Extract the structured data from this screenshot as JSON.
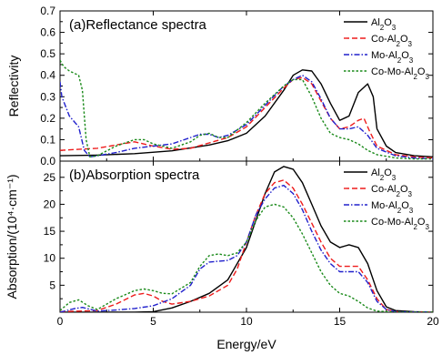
{
  "figure": {
    "xlabel": "Energy/eV",
    "xlim": [
      0,
      20
    ],
    "xticks": [
      0,
      5,
      10,
      15,
      20
    ],
    "colors": {
      "Al2O3": "#000000",
      "Co-Al2O3": "#ee1c1c",
      "Mo-Al2O3": "#2020cc",
      "Co-Mo-Al2O3": "#1a8a1a"
    },
    "dash": {
      "Al2O3": "solid",
      "Co-Al2O3": "dashed",
      "Mo-Al2O3": "dashdot",
      "Co-Mo-Al2O3": "dotted"
    }
  },
  "chart_data": [
    {
      "type": "line",
      "title": "(a)Reflectance spectra",
      "ylabel": "Reflectivity",
      "xlim": [
        0,
        20
      ],
      "ylim": [
        0.0,
        0.7
      ],
      "yticks": [
        0.0,
        0.1,
        0.2,
        0.3,
        0.4,
        0.5,
        0.6,
        0.7
      ],
      "ytick_labels": [
        "0.0",
        "0.1",
        "0.2",
        "0.3",
        "0.4",
        "0.5",
        "0.6",
        "0.7"
      ],
      "legend_position": "top-right",
      "series": [
        {
          "name": "Al2O3",
          "x": [
            0,
            2,
            4,
            6,
            8,
            9,
            10,
            11,
            12,
            12.5,
            13,
            13.5,
            14,
            14.5,
            15,
            15.5,
            16,
            16.5,
            16.8,
            17,
            17.5,
            18,
            19,
            20
          ],
          "y": [
            0.025,
            0.028,
            0.035,
            0.048,
            0.075,
            0.095,
            0.13,
            0.21,
            0.33,
            0.4,
            0.425,
            0.42,
            0.36,
            0.27,
            0.19,
            0.21,
            0.32,
            0.36,
            0.3,
            0.15,
            0.07,
            0.04,
            0.025,
            0.02
          ]
        },
        {
          "name": "Co-Al2O3",
          "x": [
            0,
            2,
            3,
            4,
            5,
            6,
            7,
            8,
            9,
            10,
            11,
            12,
            12.5,
            13,
            13.5,
            14,
            14.5,
            15,
            15.5,
            16,
            16.3,
            16.6,
            17,
            18,
            19,
            20
          ],
          "y": [
            0.05,
            0.06,
            0.075,
            0.09,
            0.07,
            0.055,
            0.06,
            0.085,
            0.11,
            0.16,
            0.25,
            0.34,
            0.38,
            0.39,
            0.36,
            0.28,
            0.2,
            0.15,
            0.16,
            0.19,
            0.2,
            0.14,
            0.07,
            0.03,
            0.02,
            0.015
          ]
        },
        {
          "name": "Mo-Al2O3",
          "x": [
            0,
            0.1,
            0.5,
            1,
            1.3,
            1.6,
            2,
            3,
            4,
            5,
            6,
            7,
            7.5,
            8,
            8.5,
            9,
            10,
            11,
            12,
            12.5,
            13,
            13.5,
            14,
            14.5,
            15,
            15.5,
            16,
            16.5,
            17,
            18,
            19,
            20
          ],
          "y": [
            0.37,
            0.3,
            0.21,
            0.16,
            0.05,
            0.02,
            0.025,
            0.04,
            0.06,
            0.07,
            0.08,
            0.11,
            0.125,
            0.125,
            0.11,
            0.12,
            0.17,
            0.26,
            0.35,
            0.38,
            0.4,
            0.37,
            0.29,
            0.2,
            0.15,
            0.15,
            0.16,
            0.12,
            0.06,
            0.025,
            0.015,
            0.01
          ]
        },
        {
          "name": "Co-Mo-Al2O3",
          "x": [
            0,
            0.2,
            0.5,
            1,
            1.2,
            1.4,
            1.6,
            2,
            3,
            4,
            4.5,
            5,
            6,
            7,
            7.5,
            8,
            8.5,
            9,
            10,
            11,
            12,
            12.5,
            13,
            13.5,
            14,
            14.5,
            15,
            15.5,
            16,
            16.5,
            17,
            18,
            19,
            20
          ],
          "y": [
            0.47,
            0.44,
            0.42,
            0.4,
            0.33,
            0.1,
            0.02,
            0.025,
            0.07,
            0.1,
            0.1,
            0.08,
            0.06,
            0.09,
            0.12,
            0.13,
            0.11,
            0.11,
            0.18,
            0.27,
            0.35,
            0.38,
            0.38,
            0.3,
            0.2,
            0.13,
            0.11,
            0.1,
            0.08,
            0.05,
            0.03,
            0.015,
            0.01,
            0.01
          ]
        }
      ]
    },
    {
      "type": "line",
      "title": "(b)Absorption spectra",
      "ylabel": "Absorption/(10⁴·cm⁻¹)",
      "xlim": [
        0,
        20
      ],
      "ylim": [
        0,
        28
      ],
      "yticks": [
        0,
        5,
        10,
        15,
        20,
        25
      ],
      "ytick_labels": [
        "0",
        "5",
        "10",
        "15",
        "20",
        "25"
      ],
      "legend_position": "top-right",
      "series": [
        {
          "name": "Al2O3",
          "x": [
            0,
            4,
            5,
            6,
            7,
            8,
            9,
            10,
            10.5,
            11,
            11.5,
            12,
            12.5,
            13,
            13.5,
            14,
            14.5,
            15,
            15.5,
            16,
            16.5,
            17,
            17.5,
            18,
            19,
            20
          ],
          "y": [
            0,
            0,
            0.1,
            0.8,
            2,
            3.5,
            6,
            12,
            17,
            22,
            26,
            27,
            26.5,
            24,
            20,
            16,
            13,
            12,
            12.5,
            12,
            9,
            4,
            1,
            0.3,
            0.1,
            0
          ]
        },
        {
          "name": "Co-Al2O3",
          "x": [
            0,
            2,
            3,
            4,
            4.5,
            5,
            5.5,
            6,
            7,
            8,
            9,
            9.5,
            10,
            10.5,
            11,
            11.5,
            12,
            12.5,
            13,
            13.5,
            14,
            14.5,
            15,
            15.5,
            16,
            16.5,
            17,
            17.5,
            18,
            19,
            20
          ],
          "y": [
            0.1,
            0.3,
            1.5,
            3.2,
            3.5,
            3,
            2,
            1.5,
            2,
            3,
            5,
            8,
            13,
            18,
            22,
            24,
            24.5,
            23,
            20,
            16.5,
            13,
            10,
            8.5,
            8.5,
            8.5,
            6,
            2.5,
            0.5,
            0.1,
            0,
            0
          ]
        },
        {
          "name": "Mo-Al2O3",
          "x": [
            0,
            0.8,
            1.2,
            2,
            3,
            4,
            5,
            6,
            7,
            7.5,
            8,
            9,
            9.5,
            10,
            10.5,
            11,
            11.5,
            12,
            12.5,
            13,
            13.5,
            14,
            14.5,
            15,
            15.5,
            16,
            16.5,
            17,
            17.5,
            18,
            19,
            20
          ],
          "y": [
            0,
            0.7,
            0.9,
            0.2,
            0.4,
            0.7,
            1.2,
            2.5,
            5,
            8,
            9.3,
            9.6,
            10.5,
            13,
            18,
            21,
            23,
            23.5,
            22,
            19,
            15,
            11.5,
            9,
            7.5,
            7.5,
            7.5,
            5.5,
            2,
            0.5,
            0.1,
            0,
            0
          ]
        },
        {
          "name": "Co-Mo-Al2O3",
          "x": [
            0,
            0.5,
            1,
            1.5,
            2,
            3,
            4,
            4.5,
            5,
            5.5,
            6,
            7,
            7.5,
            8,
            8.5,
            9,
            9.5,
            10,
            10.5,
            11,
            11.5,
            12,
            12.5,
            13,
            13.5,
            14,
            14.5,
            15,
            15.5,
            16,
            16.5,
            17,
            18,
            19,
            20
          ],
          "y": [
            0.3,
            1.8,
            2.3,
            1.2,
            0.5,
            2.5,
            4,
            4.3,
            4,
            3.5,
            3.4,
            5.5,
            8.5,
            10.5,
            10.8,
            10.5,
            11,
            13,
            17,
            19.5,
            20,
            19.5,
            17.5,
            14.5,
            11,
            7.5,
            5,
            3.5,
            3,
            2,
            0.8,
            0.2,
            0,
            0,
            0
          ]
        }
      ]
    }
  ],
  "legend": {
    "entries": [
      {
        "key": "Al2O3",
        "pre": "Al",
        "sub1": "2",
        "mid": "O",
        "sub2": "3"
      },
      {
        "key": "Co-Al2O3",
        "pre": "Co-Al",
        "sub1": "2",
        "mid": "O",
        "sub2": "3"
      },
      {
        "key": "Mo-Al2O3",
        "pre": "Mo-Al",
        "sub1": "2",
        "mid": "O",
        "sub2": "3"
      },
      {
        "key": "Co-Mo-Al2O3",
        "pre": "Co-Mo-Al",
        "sub1": "2",
        "mid": "O",
        "sub2": "3"
      }
    ]
  }
}
